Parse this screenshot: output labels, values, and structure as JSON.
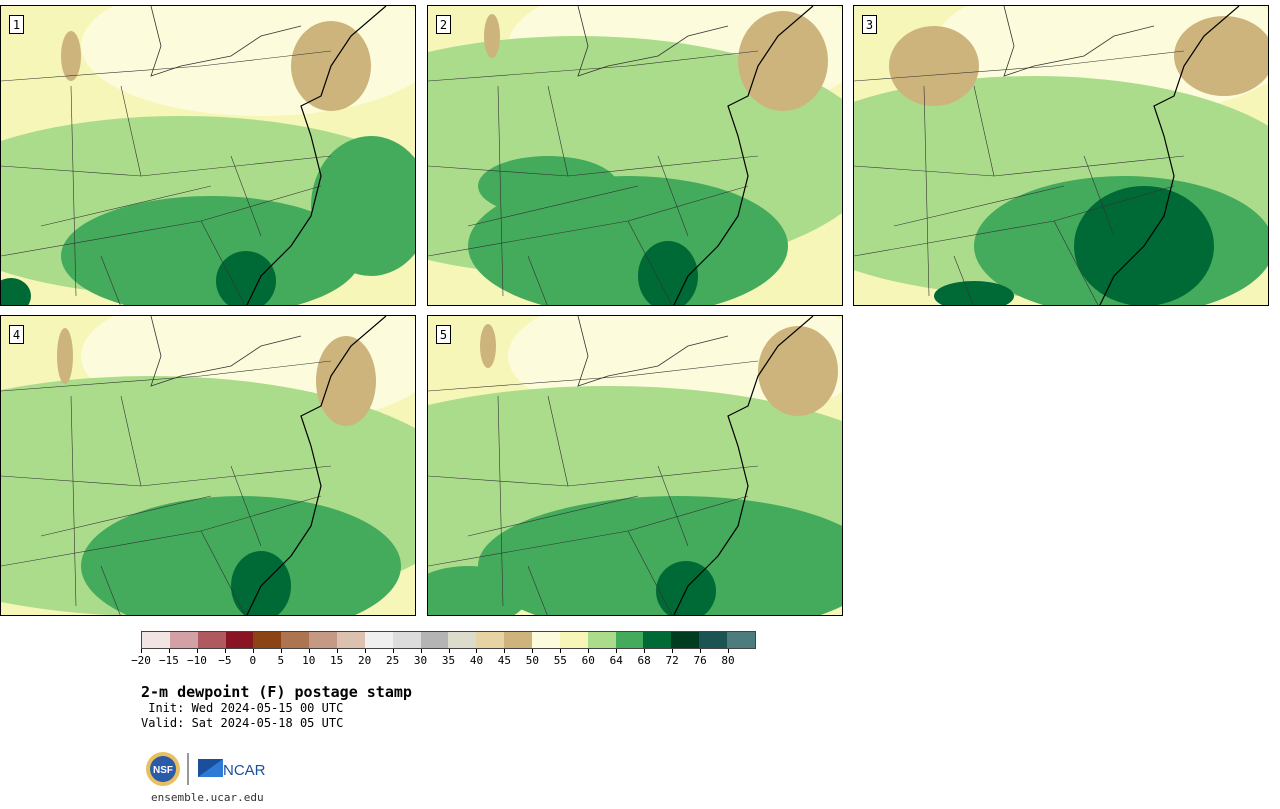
{
  "panels": [
    {
      "label": "1"
    },
    {
      "label": "2"
    },
    {
      "label": "3"
    },
    {
      "label": "4"
    },
    {
      "label": "5"
    }
  ],
  "colorbar": {
    "colors": [
      "#f3e4e4",
      "#d3a0a6",
      "#b05a60",
      "#8a1424",
      "#8c4414",
      "#ac7450",
      "#c49a84",
      "#dcc0b0",
      "#f0f0f0",
      "#dcdcdc",
      "#b4b4b4",
      "#dcdccc",
      "#e6d4a4",
      "#ccb47c",
      "#fcfcdc",
      "#f6f6b8",
      "#abdc8c",
      "#44aa5c",
      "#006a36",
      "#003c20",
      "#1c5454",
      "#4c7c7c"
    ],
    "tick_labels": [
      "−20",
      "−15",
      "−10",
      "−5",
      "0",
      "5",
      "10",
      "15",
      "20",
      "25",
      "30",
      "35",
      "40",
      "45",
      "50",
      "55",
      "60",
      "64",
      "68",
      "72",
      "76",
      "80"
    ]
  },
  "title": "2-m dewpoint (F) postage stamp",
  "init": " Init: Wed 2024-05-15 00 UTC",
  "valid": "Valid: Sat 2024-05-18 05 UTC",
  "footer_url": "ensemble.ucar.edu",
  "logos": {
    "nsf": "NSF",
    "ncar": "NCAR"
  },
  "map_colors": {
    "dry": "#ccb47c",
    "light": "#fcfcdc",
    "pale": "#f6f6b8",
    "mid": "#abdc8c",
    "moist": "#44aa5c",
    "wet": "#006a36"
  }
}
